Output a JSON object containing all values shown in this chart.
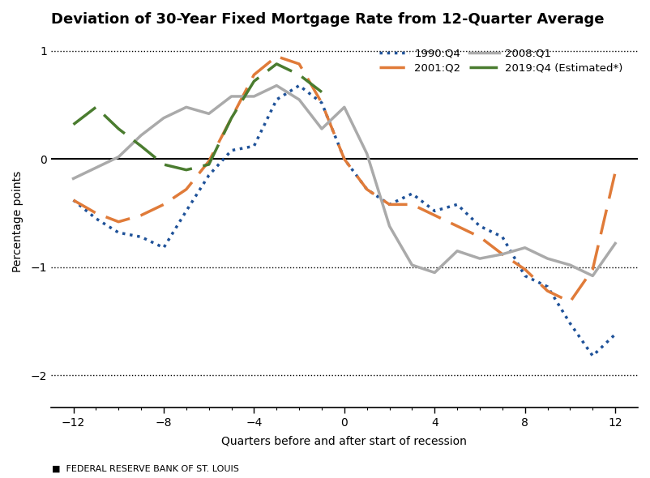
{
  "title": "Deviation of 30-Year Fixed Mortgage Rate from 12-Quarter Average",
  "xlabel": "Quarters before and after start of recession",
  "ylabel": "Percentage points",
  "footnote": "■  FEDERAL RESERVE BANK OF ST. LOUIS",
  "xlim": [
    -13,
    13
  ],
  "ylim": [
    -2.3,
    1.15
  ],
  "yticks": [
    -2,
    -1,
    0,
    1
  ],
  "xticks": [
    -12,
    -8,
    -4,
    0,
    4,
    8,
    12
  ],
  "dotted_lines": [
    1,
    -1,
    -2
  ],
  "series": {
    "1990:Q4": {
      "x": [
        -12,
        -11,
        -10,
        -9,
        -8,
        -7,
        -6,
        -5,
        -4,
        -3,
        -2,
        -1,
        0,
        1,
        2,
        3,
        4,
        5,
        6,
        7,
        8,
        9,
        10,
        11,
        12
      ],
      "y": [
        -0.38,
        -0.55,
        -0.68,
        -0.72,
        -0.82,
        -0.48,
        -0.15,
        0.08,
        0.12,
        0.55,
        0.68,
        0.52,
        0.0,
        -0.28,
        -0.42,
        -0.32,
        -0.48,
        -0.42,
        -0.62,
        -0.72,
        -1.08,
        -1.18,
        -1.52,
        -1.82,
        -1.62
      ],
      "color": "#1f5299",
      "linestyle": "dotted",
      "linewidth": 2.5
    },
    "2001:Q2": {
      "x": [
        -12,
        -11,
        -10,
        -9,
        -8,
        -7,
        -6,
        -5,
        -4,
        -3,
        -2,
        -1,
        0,
        1,
        2,
        3,
        4,
        5,
        6,
        7,
        8,
        9,
        10,
        11,
        12
      ],
      "y": [
        -0.38,
        -0.5,
        -0.58,
        -0.52,
        -0.42,
        -0.28,
        -0.02,
        0.38,
        0.78,
        0.95,
        0.88,
        0.52,
        0.0,
        -0.28,
        -0.42,
        -0.42,
        -0.52,
        -0.62,
        -0.72,
        -0.88,
        -1.02,
        -1.22,
        -1.32,
        -1.02,
        -0.12
      ],
      "color": "#e07b39",
      "linestyle": "dashed",
      "linewidth": 2.5,
      "dashes": [
        9,
        4
      ]
    },
    "2008:Q1": {
      "x": [
        -12,
        -11,
        -10,
        -9,
        -8,
        -7,
        -6,
        -5,
        -4,
        -3,
        -2,
        -1,
        0,
        1,
        2,
        3,
        4,
        5,
        6,
        7,
        8,
        9,
        10,
        11,
        12
      ],
      "y": [
        -0.18,
        -0.08,
        0.02,
        0.22,
        0.38,
        0.48,
        0.42,
        0.58,
        0.58,
        0.68,
        0.55,
        0.28,
        0.48,
        0.05,
        -0.62,
        -0.98,
        -1.05,
        -0.85,
        -0.92,
        -0.88,
        -0.82,
        -0.92,
        -0.98,
        -1.08,
        -0.78
      ],
      "color": "#aaaaaa",
      "linestyle": "solid",
      "linewidth": 2.5
    },
    "2019:Q4 (Estimated*)": {
      "x": [
        -12,
        -11,
        -10,
        -9,
        -8,
        -7,
        -6,
        -5,
        -4,
        -3,
        -2,
        -1
      ],
      "y": [
        0.32,
        0.48,
        0.28,
        0.12,
        -0.05,
        -0.1,
        -0.05,
        0.38,
        0.72,
        0.88,
        0.78,
        0.62
      ],
      "color": "#4a7c2f",
      "linestyle": "dashed",
      "linewidth": 2.5,
      "dashes": [
        10,
        4
      ]
    }
  },
  "legend_order": [
    "1990:Q4",
    "2001:Q2",
    "2008:Q1",
    "2019:Q4 (Estimated*)"
  ],
  "background_color": "#ffffff",
  "title_fontsize": 13,
  "label_fontsize": 10,
  "tick_fontsize": 10
}
